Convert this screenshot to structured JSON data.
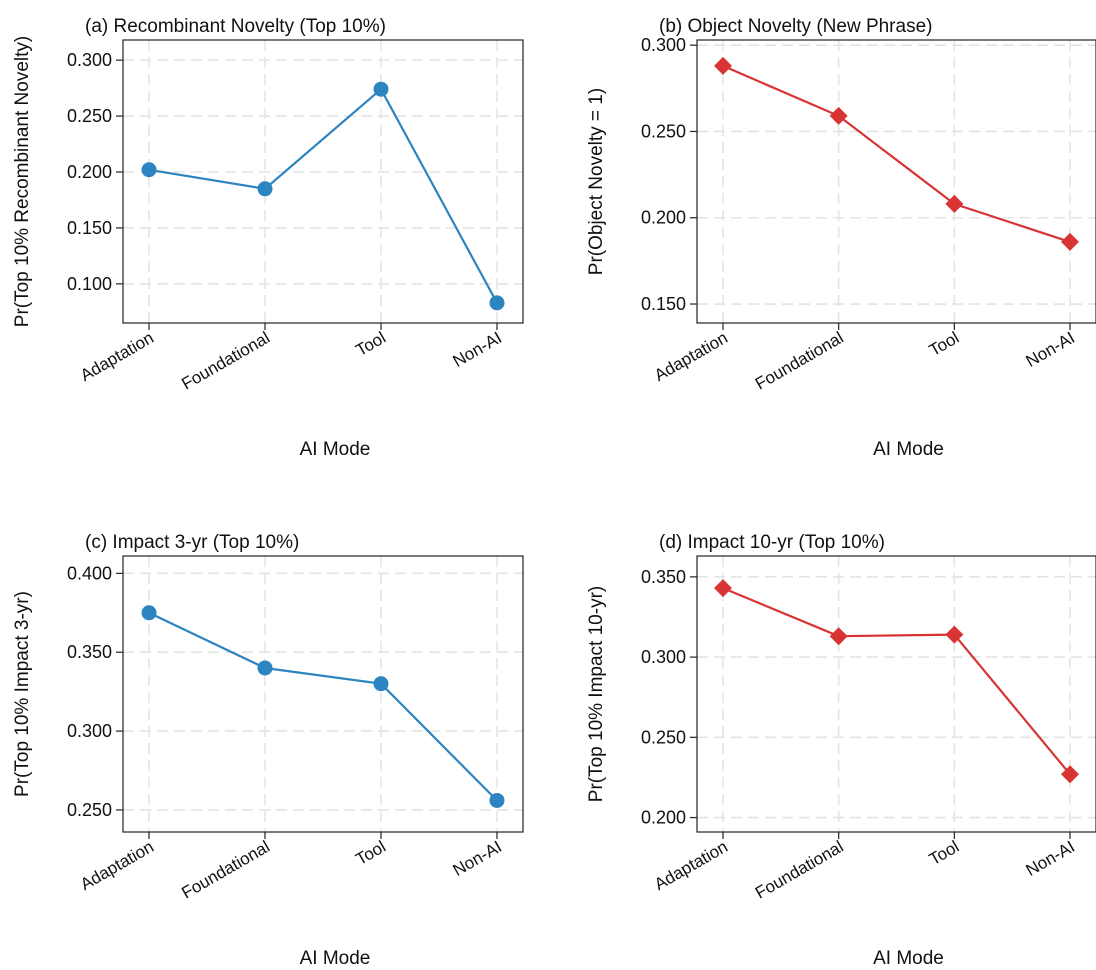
{
  "chart_data": [
    {
      "type": "line",
      "title": "(a) Recombinant Novelty (Top 10%)",
      "xlabel": "AI Mode",
      "ylabel": "Pr(Top 10% Recombinant Novelty)",
      "categories": [
        "Adaptation",
        "Foundational",
        "Tool",
        "Non-AI"
      ],
      "values": [
        0.202,
        0.185,
        0.274,
        0.083
      ],
      "yticks": [
        "0.100",
        "0.150",
        "0.200",
        "0.250",
        "0.300"
      ],
      "ylim": [
        0.065,
        0.318
      ],
      "marker": "circle",
      "color": "#2c84c0",
      "grid": true
    },
    {
      "type": "line",
      "title": "(b) Object Novelty (New Phrase)",
      "xlabel": "AI Mode",
      "ylabel": "Pr(Object Novelty = 1)",
      "categories": [
        "Adaptation",
        "Foundational",
        "Tool",
        "Non-AI"
      ],
      "values": [
        0.288,
        0.259,
        0.208,
        0.186
      ],
      "yticks": [
        "0.150",
        "0.200",
        "0.250",
        "0.300"
      ],
      "ylim": [
        0.139,
        0.303
      ],
      "marker": "diamond",
      "color": "#d93434",
      "grid": true
    },
    {
      "type": "line",
      "title": "(c) Impact 3-yr  (Top 10%)",
      "xlabel": "AI Mode",
      "ylabel": "Pr(Top 10% Impact 3-yr)",
      "categories": [
        "Adaptation",
        "Foundational",
        "Tool",
        "Non-AI"
      ],
      "values": [
        0.375,
        0.34,
        0.33,
        0.256
      ],
      "yticks": [
        "0.250",
        "0.300",
        "0.350",
        "0.400"
      ],
      "ylim": [
        0.236,
        0.411
      ],
      "marker": "circle",
      "color": "#2c84c0",
      "grid": true
    },
    {
      "type": "line",
      "title": "(d)  Impact 10-yr (Top 10%)",
      "xlabel": "AI Mode",
      "ylabel": "Pr(Top 10% Impact 10-yr)",
      "categories": [
        "Adaptation",
        "Foundational",
        "Tool",
        "Non-AI"
      ],
      "values": [
        0.343,
        0.313,
        0.314,
        0.227
      ],
      "yticks": [
        "0.200",
        "0.250",
        "0.300",
        "0.350"
      ],
      "ylim": [
        0.191,
        0.363
      ],
      "marker": "diamond",
      "color": "#d93434",
      "grid": true
    }
  ]
}
